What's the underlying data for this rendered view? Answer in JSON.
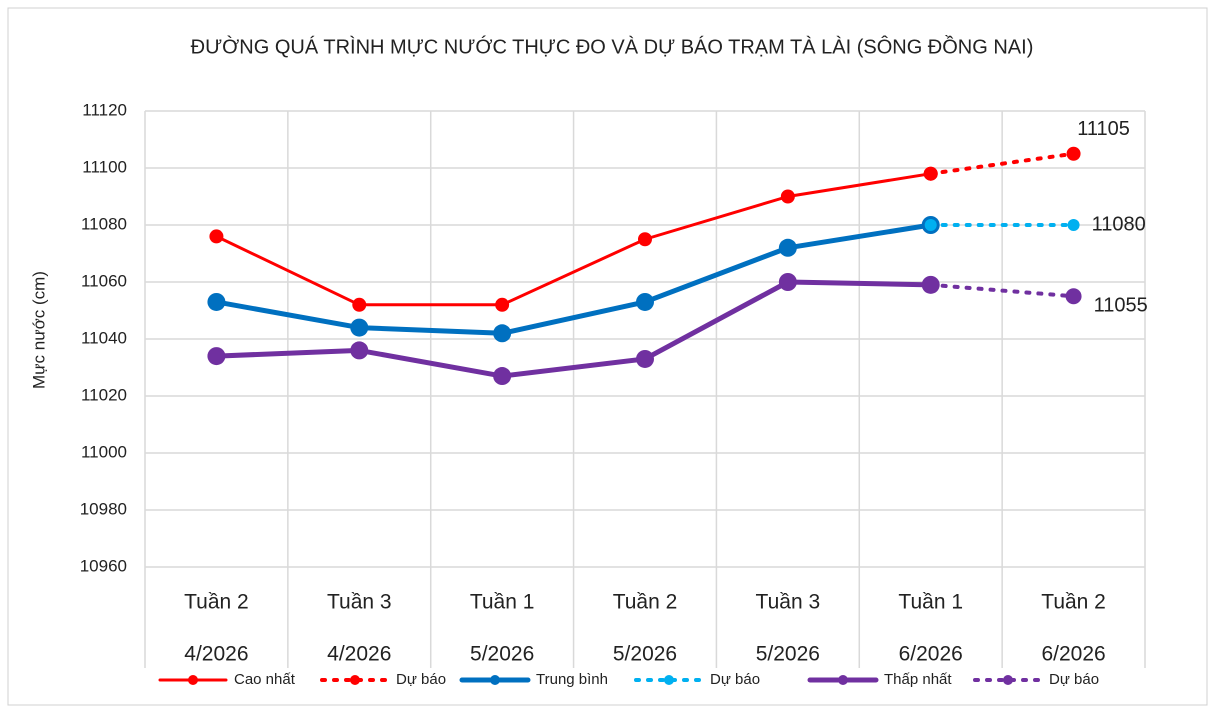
{
  "chart_data": {
    "type": "line",
    "title": "ĐƯỜNG QUÁ TRÌNH MỰC NƯỚC THỰC ĐO VÀ DỰ BÁO TRẠM TÀ LÀI (SÔNG ĐỒNG NAI)",
    "y_label": "Mực nước (cm)",
    "categories": [
      [
        "Tuần 2",
        "4/2026"
      ],
      [
        "Tuần 3",
        "4/2026"
      ],
      [
        "Tuần 1",
        "5/2026"
      ],
      [
        "Tuần 2",
        "5/2026"
      ],
      [
        "Tuần 3",
        "5/2026"
      ],
      [
        "Tuần 1",
        "6/2026"
      ],
      [
        "Tuần 2",
        "6/2026"
      ]
    ],
    "series": [
      {
        "name": "Cao nhất",
        "color": "#ff0000",
        "style": "solid",
        "values": [
          11076,
          11052,
          11052,
          11075,
          11090,
          11098,
          null
        ]
      },
      {
        "name": "Dự báo",
        "color": "#ff0000",
        "style": "dotted",
        "data_labels": true,
        "values": [
          null,
          null,
          null,
          null,
          null,
          11098,
          11105
        ]
      },
      {
        "name": "Trung bình",
        "color": "#0070c0",
        "style": "solid",
        "values": [
          11053,
          11044,
          11042,
          11053,
          11072,
          11080,
          null
        ]
      },
      {
        "name": "Dự báo",
        "color": "#00b0f0",
        "style": "dotted",
        "data_labels": true,
        "values": [
          null,
          null,
          null,
          null,
          null,
          11080,
          11080
        ]
      },
      {
        "name": "Thấp nhất",
        "color": "#7030a0",
        "style": "solid",
        "values": [
          11034,
          11036,
          11027,
          11033,
          11060,
          11059,
          null
        ]
      },
      {
        "name": "Dự báo",
        "color": "#7030a0",
        "style": "dotted",
        "data_labels": true,
        "values": [
          null,
          null,
          null,
          null,
          null,
          11059,
          11055
        ]
      }
    ],
    "ylim": [
      10960,
      11120
    ],
    "yticks": [
      10960,
      10980,
      11000,
      11020,
      11040,
      11060,
      11080,
      11100,
      11120
    ],
    "grid": true,
    "legend": "bottom"
  }
}
